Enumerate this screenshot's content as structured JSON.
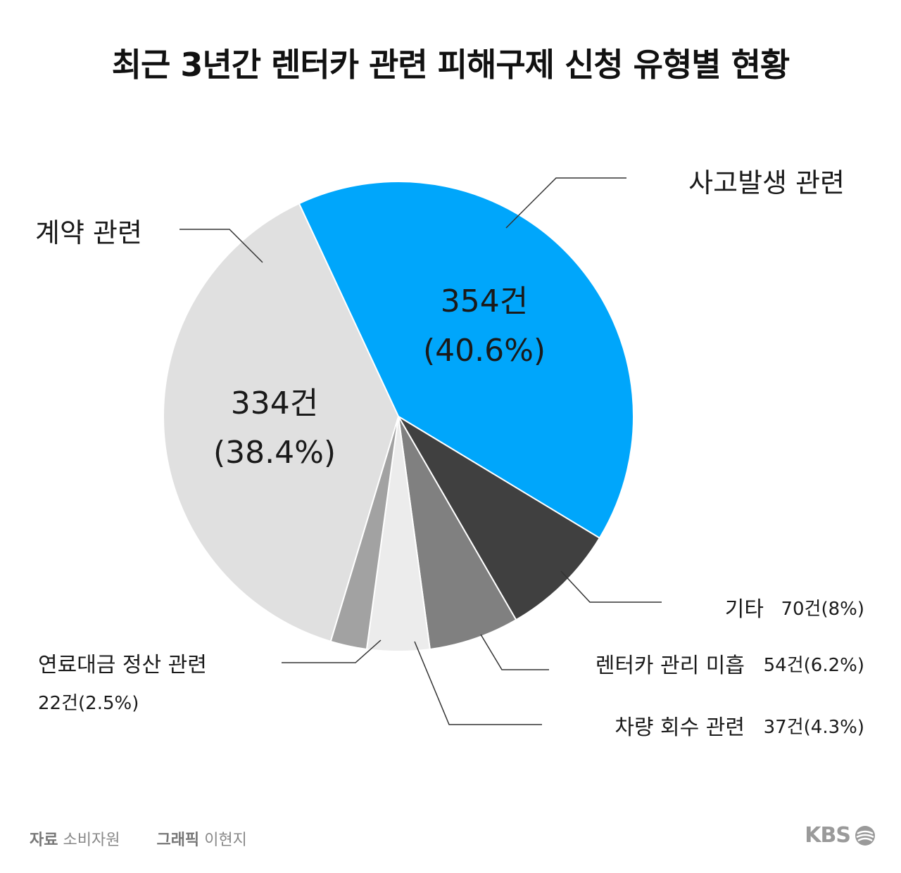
{
  "title": "최근 3년간 렌터카 관련 피해구제 신청 유형별 현황",
  "chart_data": {
    "type": "pie",
    "start_angle_deg": 335,
    "slices": [
      {
        "name": "사고발생 관련",
        "count_label": "354건",
        "pct_label": "(40.6%)",
        "value": 40.6,
        "color": "#00a6fb"
      },
      {
        "name": "기타",
        "count_label": "70건",
        "pct_label": "(8%)",
        "value": 8.0,
        "color": "#404040"
      },
      {
        "name": "렌터카 관리 미흡",
        "count_label": "54건",
        "pct_label": "(6.2%)",
        "value": 6.2,
        "color": "#808080"
      },
      {
        "name": "차량 회수 관련",
        "count_label": "37건",
        "pct_label": "(4.3%)",
        "value": 4.3,
        "color": "#ececec"
      },
      {
        "name": "연료대금 정산 관련",
        "count_label": "22건",
        "pct_label": "(2.5%)",
        "value": 2.5,
        "color": "#a2a2a2"
      },
      {
        "name": "계약 관련",
        "count_label": "334건",
        "pct_label": "(38.4%)",
        "value": 38.4,
        "color": "#e0e0e0"
      }
    ]
  },
  "footer": {
    "source_label": "자료",
    "source_value": "소비자원",
    "graphic_label": "그래픽",
    "graphic_value": "이현지"
  },
  "logo_text": "KBS"
}
